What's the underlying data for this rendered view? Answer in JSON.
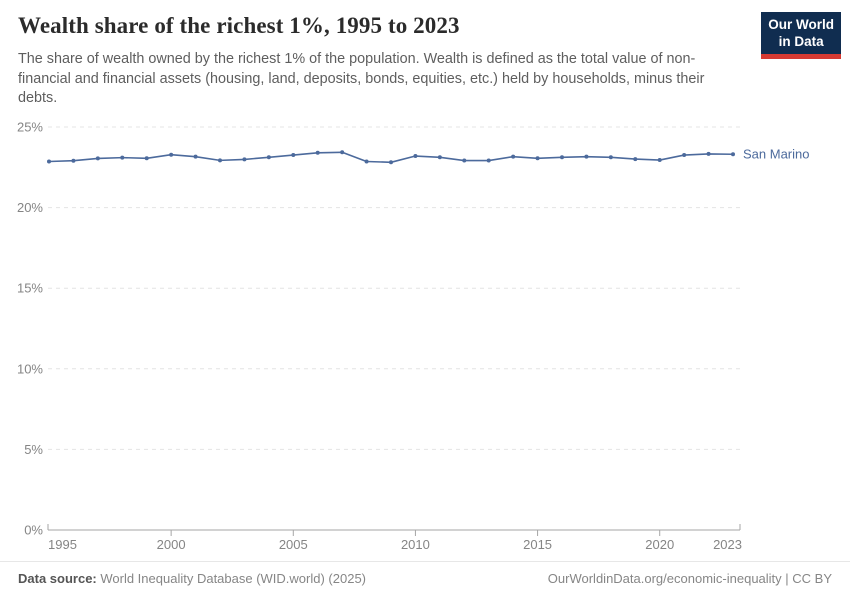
{
  "header": {
    "title": "Wealth share of the richest 1%, 1995 to 2023",
    "subtitle": "The share of wealth owned by the richest 1% of the population. Wealth is defined as the total value of non-financial and financial assets (housing, land, deposits, bonds, equities, etc.) held by households, minus their debts.",
    "logo": {
      "line1": "Our World",
      "line2": "in Data"
    }
  },
  "chart_data": {
    "type": "line",
    "title": "Wealth share of the richest 1%, 1995 to 2023",
    "xlabel": "",
    "ylabel": "",
    "xlim": [
      1995,
      2023
    ],
    "ylim": [
      0,
      25
    ],
    "xticks": [
      1995,
      2000,
      2005,
      2010,
      2015,
      2020,
      2023
    ],
    "yticks": [
      0,
      5,
      10,
      15,
      20,
      25
    ],
    "ytick_suffix": "%",
    "grid": "horizontal-dashed",
    "legend_position": "end-of-line-label",
    "series": [
      {
        "name": "San Marino",
        "color": "#4c6a9c",
        "x": [
          1995,
          1996,
          1997,
          1998,
          1999,
          2000,
          2001,
          2002,
          2003,
          2004,
          2005,
          2006,
          2007,
          2008,
          2009,
          2010,
          2011,
          2012,
          2013,
          2014,
          2015,
          2016,
          2017,
          2018,
          2019,
          2020,
          2021,
          2022,
          2023
        ],
        "values": [
          22.86,
          22.91,
          23.05,
          23.1,
          23.06,
          23.28,
          23.16,
          22.93,
          22.99,
          23.12,
          23.26,
          23.4,
          23.43,
          22.86,
          22.81,
          23.2,
          23.12,
          22.92,
          22.92,
          23.16,
          23.06,
          23.12,
          23.16,
          23.12,
          23.01,
          22.95,
          23.26,
          23.33,
          23.31
        ]
      }
    ]
  },
  "footer": {
    "source_label": "Data source:",
    "source_text": " World Inequality Database (WID.world) (2025)",
    "attribution": "OurWorldinData.org/economic-inequality | CC BY"
  },
  "colors": {
    "line": "#4c6a9c",
    "grid": "#e4e4e4",
    "axis": "#a6a6a6",
    "tick_label": "#858585",
    "logo_bg": "#102d50",
    "logo_bar": "#d73a32"
  }
}
